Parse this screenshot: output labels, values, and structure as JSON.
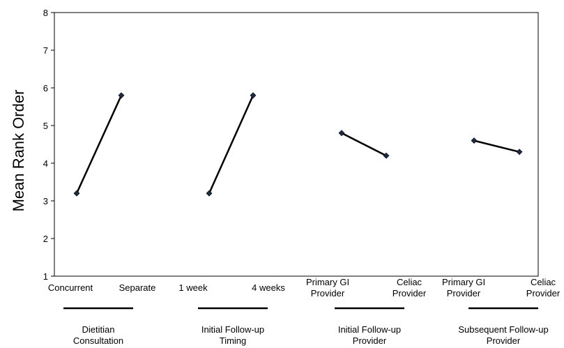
{
  "chart_data": {
    "type": "line",
    "title": "",
    "ylabel": "Mean Rank Order",
    "ylim": [
      1,
      8
    ],
    "yticks": [
      1,
      2,
      3,
      4,
      5,
      6,
      7,
      8
    ],
    "grid": false,
    "marker_color": "#1f2a44",
    "line_color": "#000000",
    "groups": [
      {
        "label": [
          "Dietitian",
          "Consultation"
        ],
        "categories": [
          [
            "Concurrent"
          ],
          [
            "Separate"
          ]
        ],
        "values": [
          3.2,
          5.8
        ]
      },
      {
        "label": [
          "Initial Follow-up",
          "Timing"
        ],
        "categories": [
          [
            "1 week"
          ],
          [
            "4 weeks"
          ]
        ],
        "values": [
          3.2,
          5.8
        ]
      },
      {
        "label": [
          "Initial Follow-up",
          "Provider"
        ],
        "categories": [
          [
            "Primary GI",
            "Provider"
          ],
          [
            "Celiac",
            "Provider"
          ]
        ],
        "values": [
          4.8,
          4.2
        ]
      },
      {
        "label": [
          "Subsequent Follow-up",
          "Provider"
        ],
        "categories": [
          [
            "Primary GI",
            "Provider"
          ],
          [
            "Celiac",
            "Provider"
          ]
        ],
        "values": [
          4.6,
          4.3
        ]
      }
    ]
  }
}
